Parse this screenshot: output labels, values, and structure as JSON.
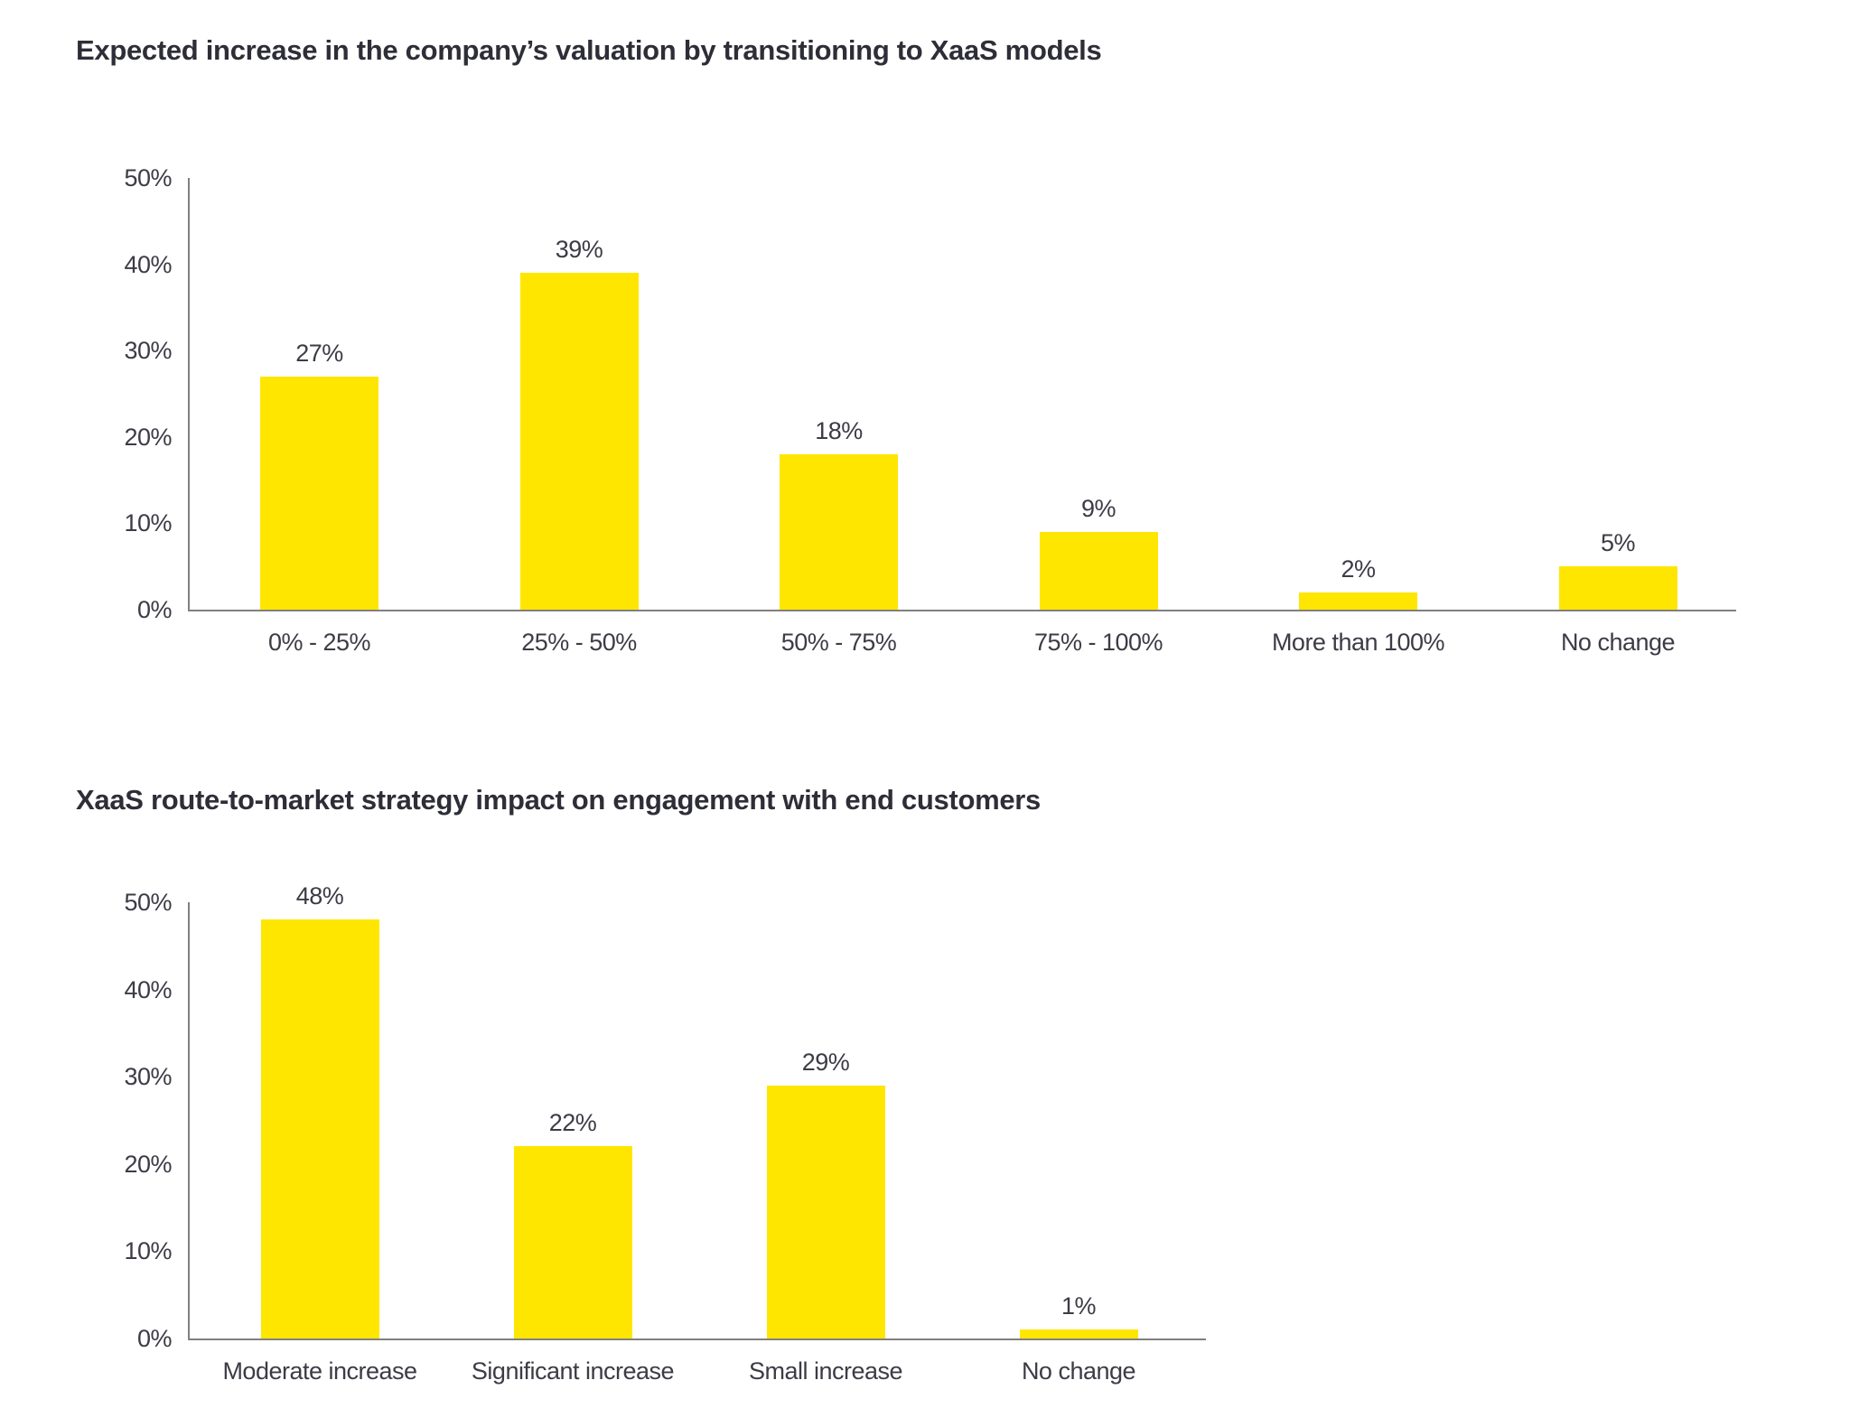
{
  "colors": {
    "bar": "#FFE600",
    "axis": "#808080",
    "title_text": "#2E2E38",
    "label_text": "#3C3C46",
    "background": "#FFFFFF"
  },
  "chart_data": [
    {
      "type": "bar",
      "title": "Expected increase in the company’s valuation by transitioning to XaaS models",
      "categories": [
        "0% - 25%",
        "25% - 50%",
        "50% - 75%",
        "75% - 100%",
        "More than 100%",
        "No change"
      ],
      "values": [
        27,
        39,
        18,
        9,
        2,
        5
      ],
      "value_labels": [
        "27%",
        "39%",
        "18%",
        "9%",
        "2%",
        "5%"
      ],
      "ytick_labels": [
        "0%",
        "10%",
        "20%",
        "30%",
        "40%",
        "50%"
      ],
      "ytick_values": [
        0,
        10,
        20,
        30,
        40,
        50
      ],
      "ylim": [
        0,
        50
      ],
      "xlabel": "",
      "ylabel": "",
      "grid": false,
      "legend": "none",
      "bar_color": "#FFE600"
    },
    {
      "type": "bar",
      "title": "XaaS route-to-market strategy impact on engagement with end customers",
      "categories": [
        "Moderate increase",
        "Significant increase",
        "Small increase",
        "No change"
      ],
      "values": [
        48,
        22,
        29,
        1
      ],
      "value_labels": [
        "48%",
        "22%",
        "29%",
        "1%"
      ],
      "ytick_labels": [
        "0%",
        "10%",
        "20%",
        "30%",
        "40%",
        "50%"
      ],
      "ytick_values": [
        0,
        10,
        20,
        30,
        40,
        50
      ],
      "ylim": [
        0,
        50
      ],
      "xlabel": "",
      "ylabel": "",
      "grid": false,
      "legend": "none",
      "bar_color": "#FFE600"
    }
  ]
}
